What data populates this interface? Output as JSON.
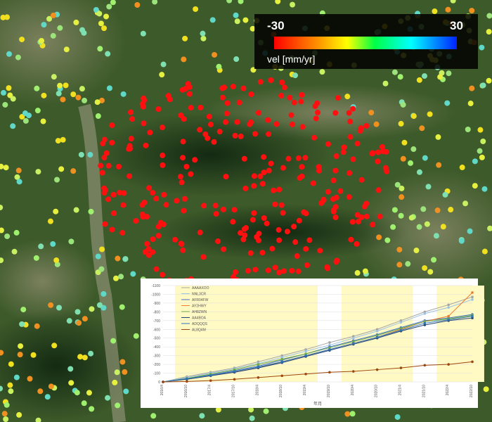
{
  "colorbar": {
    "min": "-30",
    "max": "30",
    "label": "vel [mm/yr]"
  },
  "chart_data": {
    "type": "line",
    "x_label": "年月",
    "categories": [
      "2016/4",
      "2016/10",
      "2017/4",
      "2017/10",
      "2018/4",
      "2018/10",
      "2019/4",
      "2019/10",
      "2020/4",
      "2020/10",
      "2021/4",
      "2021/10",
      "2022/4",
      "2022/10"
    ],
    "ylim": [
      0,
      -1100
    ],
    "yticks": [
      0,
      -100,
      -200,
      -300,
      -400,
      -500,
      -600,
      -700,
      -800,
      -900,
      -1000,
      -1100
    ],
    "grid": true,
    "series": [
      {
        "name": "AAAAXOO",
        "color": "#a5a5a5",
        "values": [
          0,
          -60,
          -110,
          -160,
          -230,
          -300,
          -370,
          -450,
          -520,
          -600,
          -700,
          -800,
          -880,
          -970
        ]
      },
      {
        "name": "NNL3CR",
        "color": "#9dc3e6",
        "values": [
          0,
          -50,
          -100,
          -150,
          -210,
          -280,
          -350,
          -420,
          -500,
          -580,
          -680,
          -780,
          -850,
          -940
        ]
      },
      {
        "name": "AFR04FW",
        "color": "#4472c4",
        "values": [
          0,
          -40,
          -80,
          -130,
          -180,
          -250,
          -320,
          -400,
          -470,
          -540,
          -620,
          -700,
          -730,
          -770
        ]
      },
      {
        "name": "AY2HWY",
        "color": "#ed7d31",
        "values": [
          0,
          -30,
          -70,
          -110,
          -160,
          -230,
          -300,
          -370,
          -440,
          -510,
          -600,
          -690,
          -750,
          -1020
        ]
      },
      {
        "name": "AH8ZWN",
        "color": "#70ad47",
        "values": [
          0,
          -40,
          -90,
          -140,
          -200,
          -260,
          -320,
          -390,
          -460,
          -530,
          -610,
          -690,
          -720,
          -760
        ]
      },
      {
        "name": "AA4BOA",
        "color": "#264478",
        "values": [
          0,
          -30,
          -70,
          -110,
          -160,
          -220,
          -290,
          -360,
          -430,
          -500,
          -580,
          -650,
          -700,
          -730
        ]
      },
      {
        "name": "ADQQQS",
        "color": "#2e75b6",
        "values": [
          0,
          -35,
          -75,
          -120,
          -170,
          -230,
          -300,
          -370,
          -440,
          -510,
          -590,
          -670,
          -710,
          -750
        ]
      },
      {
        "name": "AL8Q4M",
        "color": "#9e480e",
        "values": [
          0,
          -5,
          -15,
          -30,
          -50,
          -70,
          -90,
          -110,
          -120,
          -140,
          -160,
          -190,
          -200,
          -230
        ]
      }
    ]
  }
}
